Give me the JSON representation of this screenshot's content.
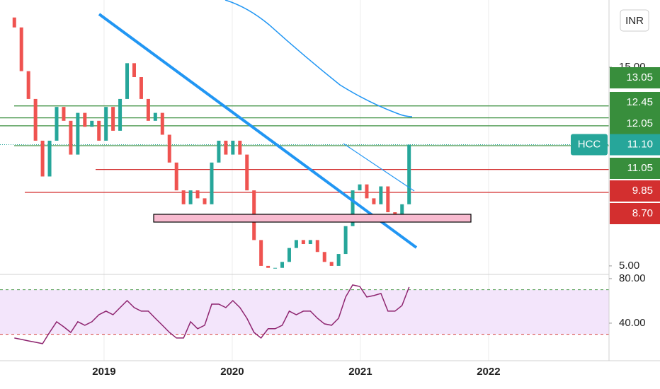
{
  "chart_data": [
    {
      "type": "candlestick",
      "symbol": "HCC",
      "currency": "INR",
      "x": [
        2018.3,
        2018.355,
        2018.41,
        2018.465,
        2018.52,
        2018.575,
        2018.63,
        2018.685,
        2018.74,
        2018.795,
        2018.85,
        2018.905,
        2018.96,
        2019.015,
        2019.07,
        2019.125,
        2019.18,
        2019.235,
        2019.29,
        2019.345,
        2019.4,
        2019.455,
        2019.51,
        2019.565,
        2019.62,
        2019.675,
        2019.73,
        2019.785,
        2019.84,
        2019.895,
        2019.95,
        2020.005,
        2020.06,
        2020.115,
        2020.17,
        2020.225,
        2020.28,
        2020.335,
        2020.39,
        2020.445,
        2020.5,
        2020.555,
        2020.61,
        2020.665,
        2020.72,
        2020.775,
        2020.83,
        2020.885,
        2020.94,
        2020.995,
        2021.05,
        2021.105,
        2021.16,
        2021.215,
        2021.27,
        2021.325,
        2021.38
      ],
      "open": [
        17.5,
        17.0,
        14.8,
        13.4,
        11.3,
        9.5,
        11.3,
        13.0,
        12.3,
        10.6,
        12.7,
        12.0,
        12.3,
        11.3,
        13.0,
        11.8,
        13.4,
        15.2,
        14.5,
        13.4,
        12.3,
        12.7,
        11.6,
        10.2,
        8.8,
        8.1,
        8.8,
        8.4,
        8.1,
        10.2,
        11.3,
        10.6,
        11.3,
        10.6,
        8.8,
        6.3,
        5.0,
        4.9,
        4.9,
        5.2,
        5.9,
        6.3,
        6.1,
        6.3,
        5.7,
        5.2,
        5.0,
        5.6,
        7.0,
        8.8,
        9.1,
        8.4,
        8.1,
        9.0,
        7.7,
        7.5,
        8.1
      ],
      "close": [
        17.0,
        14.8,
        13.4,
        11.3,
        9.5,
        11.3,
        13.0,
        12.3,
        10.6,
        12.7,
        12.0,
        12.3,
        11.3,
        13.0,
        11.8,
        13.4,
        15.2,
        14.5,
        13.4,
        12.3,
        12.7,
        11.6,
        10.2,
        8.8,
        8.1,
        8.8,
        8.4,
        8.1,
        10.2,
        11.3,
        10.6,
        11.3,
        10.6,
        8.8,
        6.3,
        5.0,
        4.9,
        4.9,
        5.2,
        5.9,
        6.3,
        6.1,
        6.3,
        5.7,
        5.2,
        5.0,
        5.6,
        7.0,
        8.8,
        9.1,
        8.4,
        8.1,
        9.0,
        7.7,
        7.5,
        8.1,
        11.1
      ],
      "up_color": "#26a69a",
      "down_color": "#ef5350",
      "xlim": [
        2018.188,
        2022.94
      ],
      "xticks": [
        2019,
        2020,
        2021,
        2022
      ],
      "ylim": [
        4.57,
        18.38
      ],
      "yticks": [
        {
          "value": 5,
          "label": "5.00"
        },
        {
          "value": 15,
          "label": "15.00"
        }
      ],
      "current": {
        "value": 11.1,
        "label": "11.10",
        "color": "#26a69a"
      },
      "levels": [
        {
          "value": 13.05,
          "label": "13.05",
          "color": "#388e3c"
        },
        {
          "value": 12.45,
          "label": "12.45",
          "color": "#388e3c"
        },
        {
          "value": 12.05,
          "label": "12.05",
          "color": "#388e3c"
        },
        {
          "value": 11.05,
          "label": "11.05",
          "color": "#388e3c"
        },
        {
          "value": 9.85,
          "label": "9.85",
          "color": "#d32f2f"
        },
        {
          "value": 8.7,
          "label": "8.70",
          "color": "#d32f2f"
        }
      ]
    },
    {
      "type": "line",
      "x": [
        2018.3,
        2018.355,
        2018.41,
        2018.465,
        2018.52,
        2018.575,
        2018.63,
        2018.685,
        2018.74,
        2018.795,
        2018.85,
        2018.905,
        2018.96,
        2019.015,
        2019.07,
        2019.125,
        2019.18,
        2019.235,
        2019.29,
        2019.345,
        2019.4,
        2019.455,
        2019.51,
        2019.565,
        2019.62,
        2019.675,
        2019.73,
        2019.785,
        2019.84,
        2019.895,
        2019.95,
        2020.005,
        2020.06,
        2020.115,
        2020.17,
        2020.225,
        2020.28,
        2020.335,
        2020.39,
        2020.445,
        2020.5,
        2020.555,
        2020.61,
        2020.665,
        2020.72,
        2020.775,
        2020.83,
        2020.885,
        2020.94,
        2020.995,
        2021.05,
        2021.105,
        2021.16,
        2021.215,
        2021.27,
        2021.325,
        2021.38
      ],
      "values": [
        26.7,
        25.4,
        24.1,
        22.9,
        21.6,
        31.7,
        41.3,
        36.8,
        31.7,
        41.3,
        38.1,
        41.3,
        47.6,
        50.8,
        47.6,
        54,
        60.3,
        54,
        50.8,
        50.8,
        44.4,
        38.1,
        31.7,
        26.7,
        26.7,
        41.3,
        35,
        38.1,
        57.1,
        57.1,
        54,
        60.3,
        54,
        44.4,
        31.7,
        26.7,
        35,
        35,
        38.1,
        50.8,
        47.6,
        50.8,
        50.8,
        44.4,
        39.4,
        38.1,
        44.4,
        63.5,
        74.3,
        73,
        63.5,
        64.8,
        66.7,
        50.8,
        50.8,
        55.9,
        72.4
      ],
      "color": "#8e246f",
      "xlim": [
        2018.188,
        2022.94
      ],
      "ylim": [
        6.3,
        82.5
      ],
      "yticks": [
        {
          "value": 80,
          "label": "80.00"
        },
        {
          "value": 40,
          "label": "40.00"
        }
      ],
      "levels": [
        {
          "value": 70,
          "color": "#4c9a4c"
        },
        {
          "value": 30,
          "color": "#d23a3a"
        }
      ],
      "band_color": "#f3e5fb"
    }
  ]
}
